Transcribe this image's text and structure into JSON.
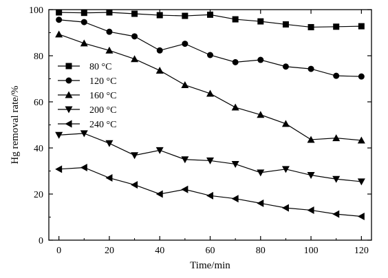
{
  "chart_data": {
    "type": "line",
    "xlabel": "Time/min",
    "ylabel": "Hg removal rate/%",
    "xlim": [
      -4,
      124
    ],
    "ylim": [
      0,
      100
    ],
    "xticks": [
      0,
      20,
      40,
      60,
      80,
      100,
      120
    ],
    "yticks": [
      0,
      20,
      40,
      60,
      80,
      100
    ],
    "x": [
      0,
      10,
      20,
      30,
      40,
      50,
      60,
      70,
      80,
      90,
      100,
      110,
      120
    ],
    "legend_position": "upper-left",
    "series": [
      {
        "name": "80 °C",
        "marker": "square",
        "values": [
          98.8,
          98.6,
          98.8,
          98.2,
          97.6,
          97.3,
          97.8,
          95.8,
          94.9,
          93.6,
          92.4,
          92.6,
          92.8
        ]
      },
      {
        "name": "120 °C",
        "marker": "circle",
        "values": [
          95.6,
          94.6,
          90.4,
          88.4,
          82.3,
          85.2,
          80.3,
          77.2,
          78.2,
          75.3,
          74.3,
          71.3,
          71.0
        ]
      },
      {
        "name": "160 °C",
        "marker": "triangle-up",
        "values": [
          89.3,
          85.4,
          82.3,
          78.6,
          73.6,
          67.3,
          63.6,
          57.6,
          54.4,
          50.5,
          43.6,
          44.3,
          43.3
        ]
      },
      {
        "name": "200 °C",
        "marker": "triangle-down",
        "values": [
          45.6,
          46.3,
          42.0,
          36.8,
          39.0,
          35.0,
          34.5,
          33.0,
          29.3,
          30.8,
          28.2,
          26.5,
          25.4
        ]
      },
      {
        "name": "240 °C",
        "marker": "triangle-left",
        "values": [
          30.8,
          31.5,
          27.0,
          24.0,
          20.0,
          22.0,
          19.3,
          18.0,
          16.0,
          14.0,
          13.0,
          11.3,
          10.3
        ]
      }
    ]
  }
}
